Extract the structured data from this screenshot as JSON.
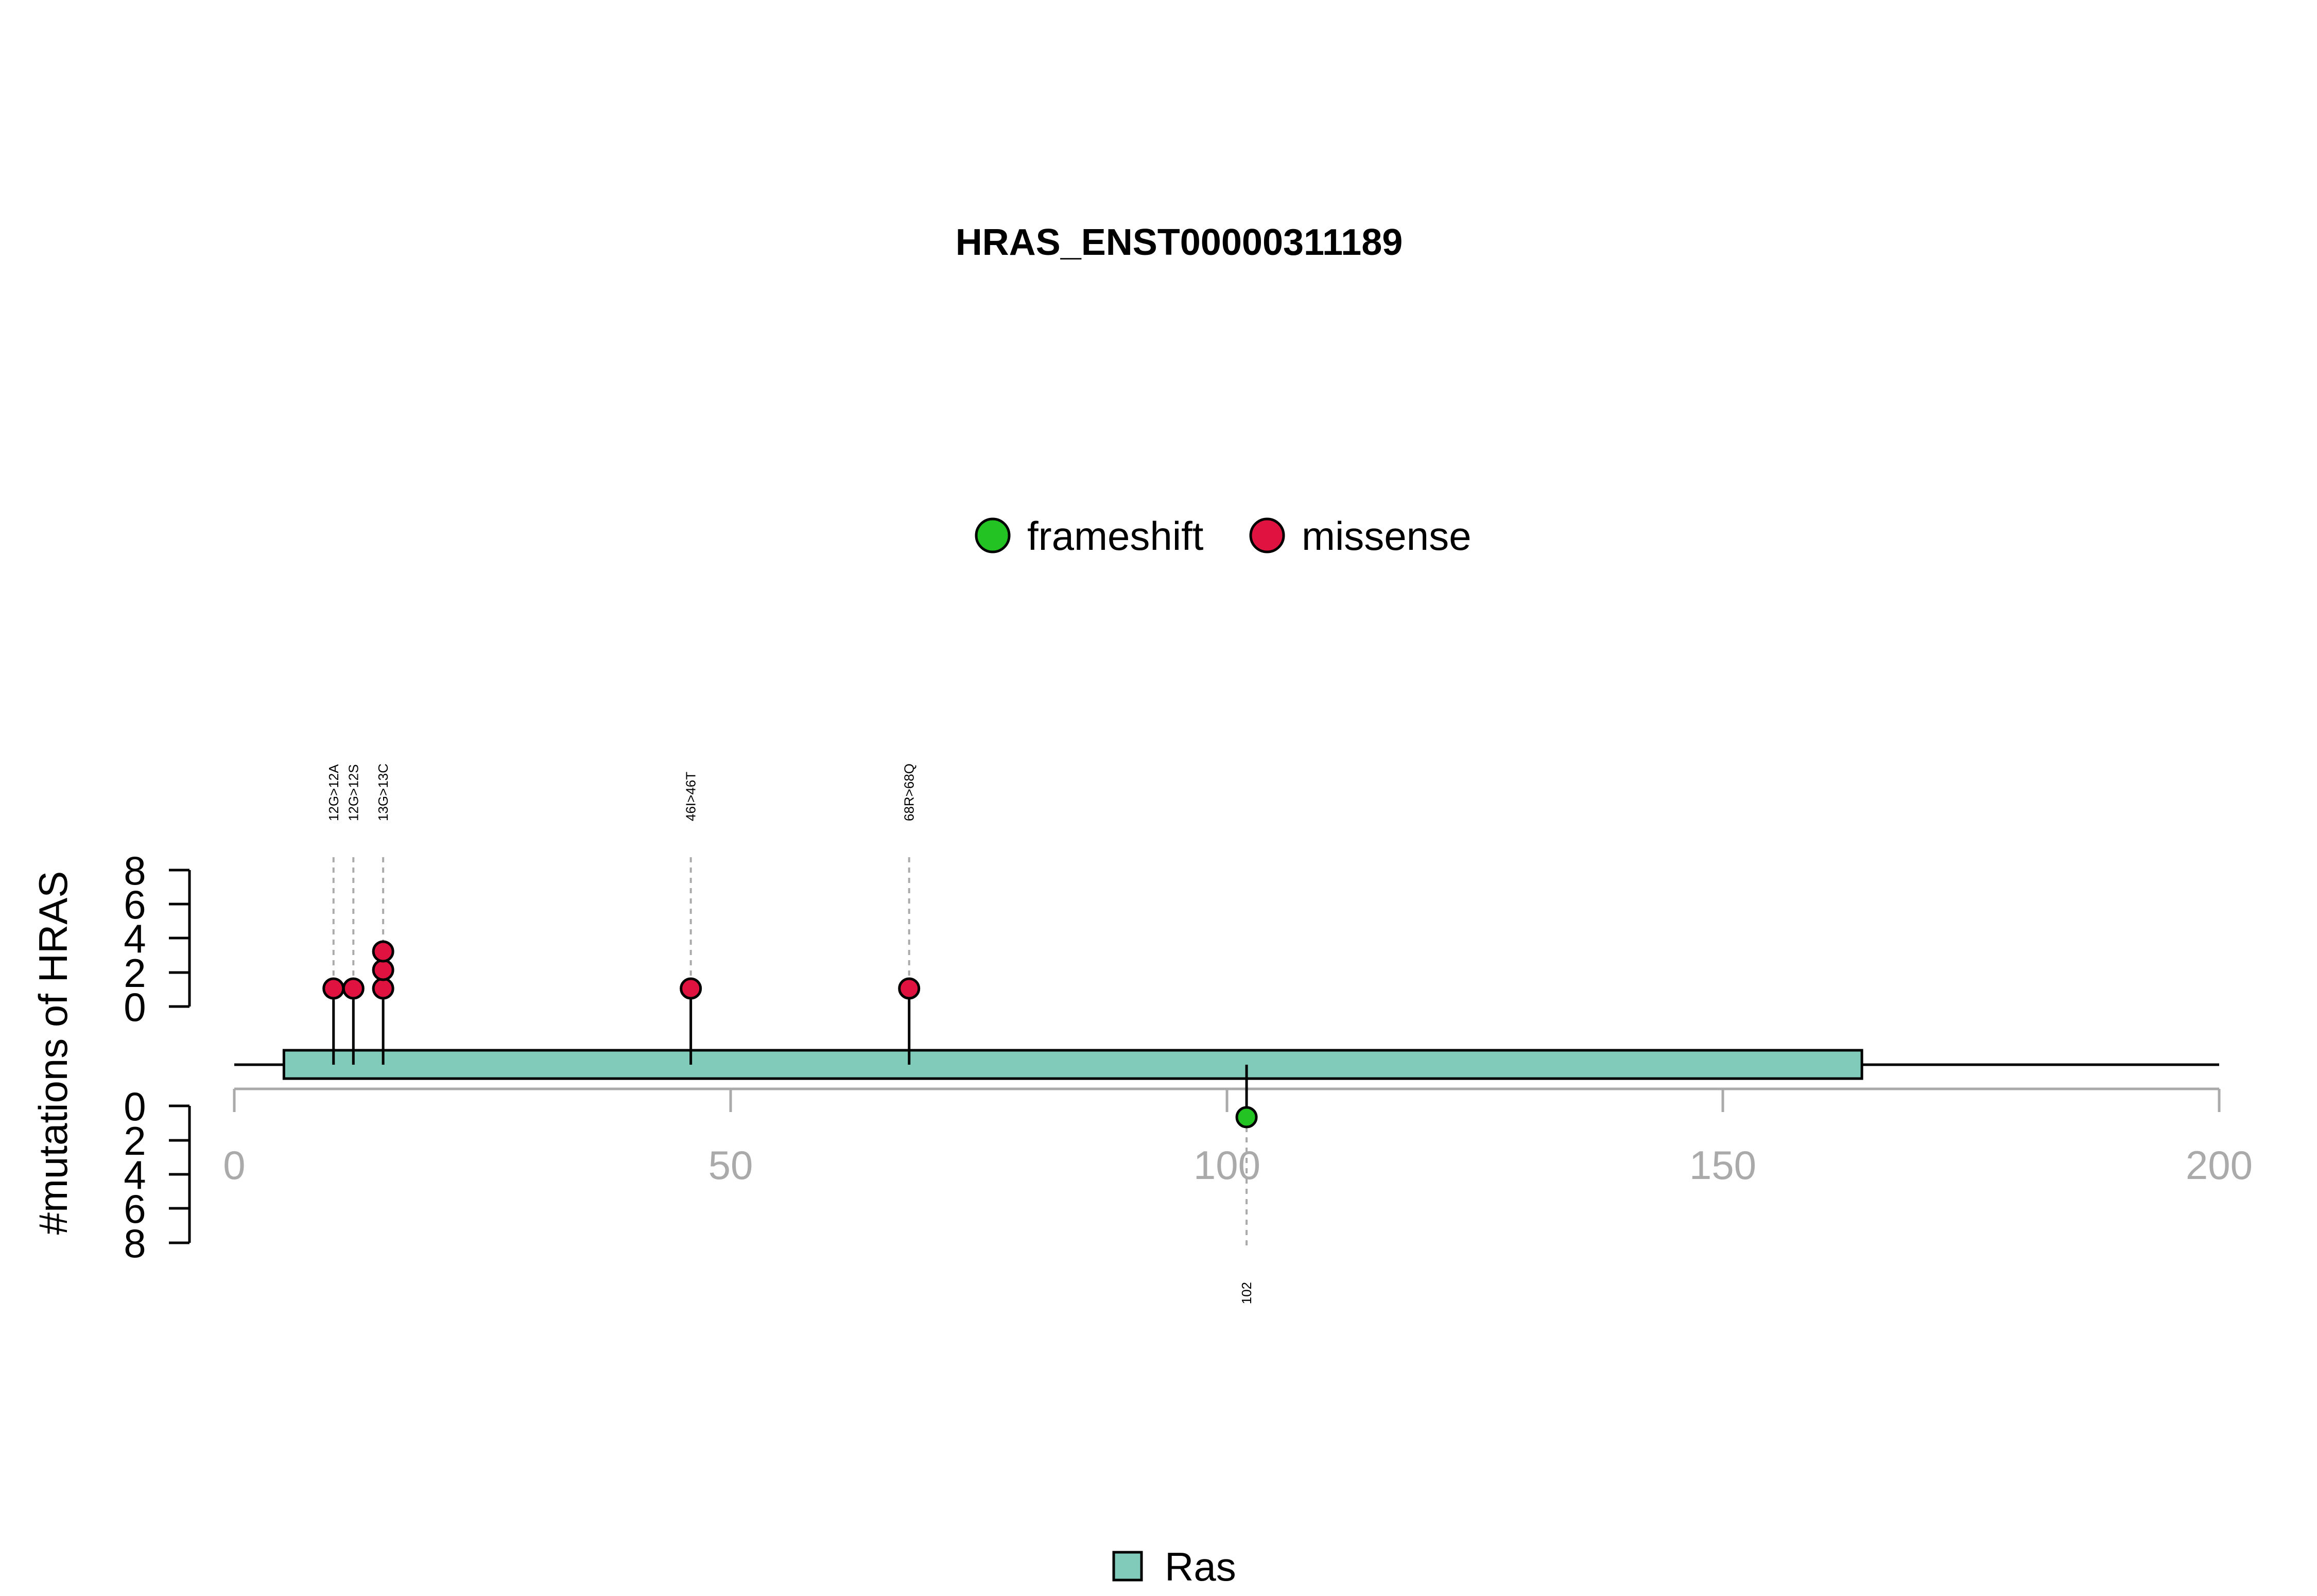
{
  "chart_data": {
    "type": "lollipop",
    "title": "HRAS_ENST00000311189",
    "ylabel": "#mutations of HRAS",
    "xlim": [
      0,
      200
    ],
    "x_ticks": [
      "0",
      "50",
      "100",
      "150",
      "200"
    ],
    "y_ticks": [
      "0",
      "2",
      "4",
      "6",
      "8"
    ],
    "ylim": [
      0,
      8
    ],
    "legend": [
      {
        "name": "frameshift",
        "color": "#22c322"
      },
      {
        "name": "missense",
        "color": "#e0123f"
      }
    ],
    "domain_legend": [
      {
        "name": "Ras",
        "color": "#80cbba"
      }
    ],
    "domains": [
      {
        "name": "Ras",
        "start": 5,
        "end": 164,
        "color": "#80cbba"
      }
    ],
    "protein_length": 200,
    "mutations": [
      {
        "position": 10,
        "label": "12G>12A",
        "type": "missense",
        "count": 1,
        "side": "top"
      },
      {
        "position": 12,
        "label": "12G>12S",
        "type": "missense",
        "count": 1,
        "side": "top"
      },
      {
        "position": 15,
        "label": "13G>13C",
        "type": "missense",
        "count": 3,
        "side": "top"
      },
      {
        "position": 46,
        "label": "46I>46T",
        "type": "missense",
        "count": 1,
        "side": "top"
      },
      {
        "position": 68,
        "label": "68R>68Q",
        "type": "missense",
        "count": 1,
        "side": "top"
      },
      {
        "position": 102,
        "label": "102",
        "type": "frameshift",
        "count": 1,
        "side": "bottom"
      }
    ]
  }
}
